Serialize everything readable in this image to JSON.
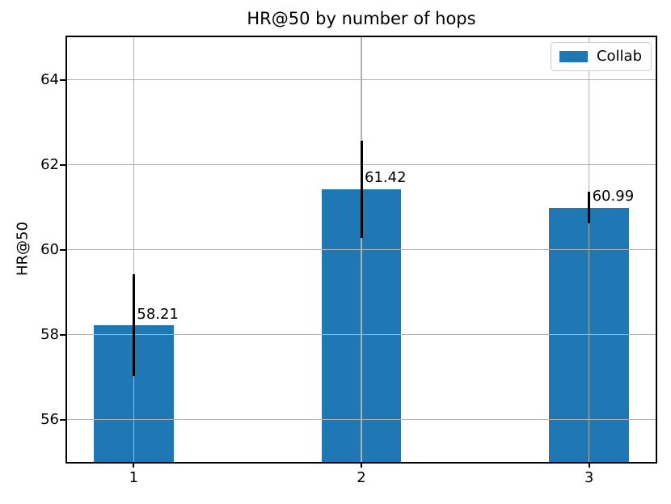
{
  "chart_data": {
    "type": "bar",
    "title": "HR@50 by number of hops",
    "xlabel": "",
    "ylabel": "HR@50",
    "categories": [
      "1",
      "2",
      "3"
    ],
    "series": [
      {
        "name": "Collab",
        "values": [
          58.21,
          61.42,
          60.99
        ],
        "errors": [
          1.2,
          1.15,
          0.37
        ],
        "color": "#1f77b4"
      }
    ],
    "value_labels": [
      "58.21",
      "61.42",
      "60.99"
    ],
    "yticks": [
      "56",
      "58",
      "60",
      "62",
      "64"
    ],
    "ytick_values": [
      56,
      58,
      60,
      62,
      64
    ],
    "ylim": [
      55,
      65
    ],
    "bar_width_units": 0.35,
    "grid": true,
    "legend_position": "upper right",
    "colors": {
      "bar": "#1f77b4",
      "grid": "#b0b0b0",
      "error_bar": "#000000",
      "spine": "#000000",
      "legend_border": "#cccccc"
    }
  },
  "legend": {
    "label": "Collab"
  }
}
